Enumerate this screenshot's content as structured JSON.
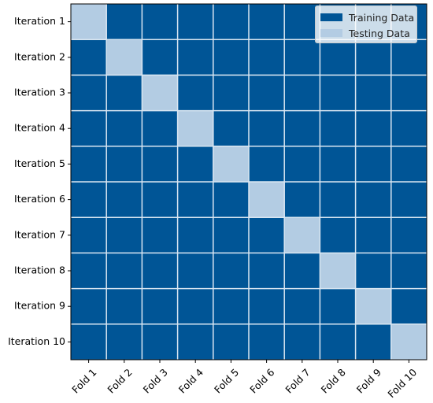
{
  "chart_data": {
    "type": "heatmap",
    "title": "",
    "xlabel": "",
    "ylabel": "",
    "columns": [
      "Fold 1",
      "Fold 2",
      "Fold 3",
      "Fold 4",
      "Fold 5",
      "Fold 6",
      "Fold 7",
      "Fold 8",
      "Fold 9",
      "Fold 10"
    ],
    "rows": [
      "Iteration 1",
      "Iteration 2",
      "Iteration 3",
      "Iteration 4",
      "Iteration 5",
      "Iteration 6",
      "Iteration 7",
      "Iteration 8",
      "Iteration 9",
      "Iteration 10"
    ],
    "values": [
      [
        1,
        0,
        0,
        0,
        0,
        0,
        0,
        0,
        0,
        0
      ],
      [
        0,
        1,
        0,
        0,
        0,
        0,
        0,
        0,
        0,
        0
      ],
      [
        0,
        0,
        1,
        0,
        0,
        0,
        0,
        0,
        0,
        0
      ],
      [
        0,
        0,
        0,
        1,
        0,
        0,
        0,
        0,
        0,
        0
      ],
      [
        0,
        0,
        0,
        0,
        1,
        0,
        0,
        0,
        0,
        0
      ],
      [
        0,
        0,
        0,
        0,
        0,
        1,
        0,
        0,
        0,
        0
      ],
      [
        0,
        0,
        0,
        0,
        0,
        0,
        1,
        0,
        0,
        0
      ],
      [
        0,
        0,
        0,
        0,
        0,
        0,
        0,
        1,
        0,
        0
      ],
      [
        0,
        0,
        0,
        0,
        0,
        0,
        0,
        0,
        1,
        0
      ],
      [
        0,
        0,
        0,
        0,
        0,
        0,
        0,
        0,
        0,
        1
      ]
    ],
    "legend_position": "top-right",
    "legend": [
      {
        "label": "Training Data",
        "color": "#005596"
      },
      {
        "label": "Testing Data",
        "color": "#b3cce3"
      }
    ],
    "colors": {
      "train": "#005596",
      "test": "#b3cce3",
      "grid": "#d9e6f2"
    }
  }
}
